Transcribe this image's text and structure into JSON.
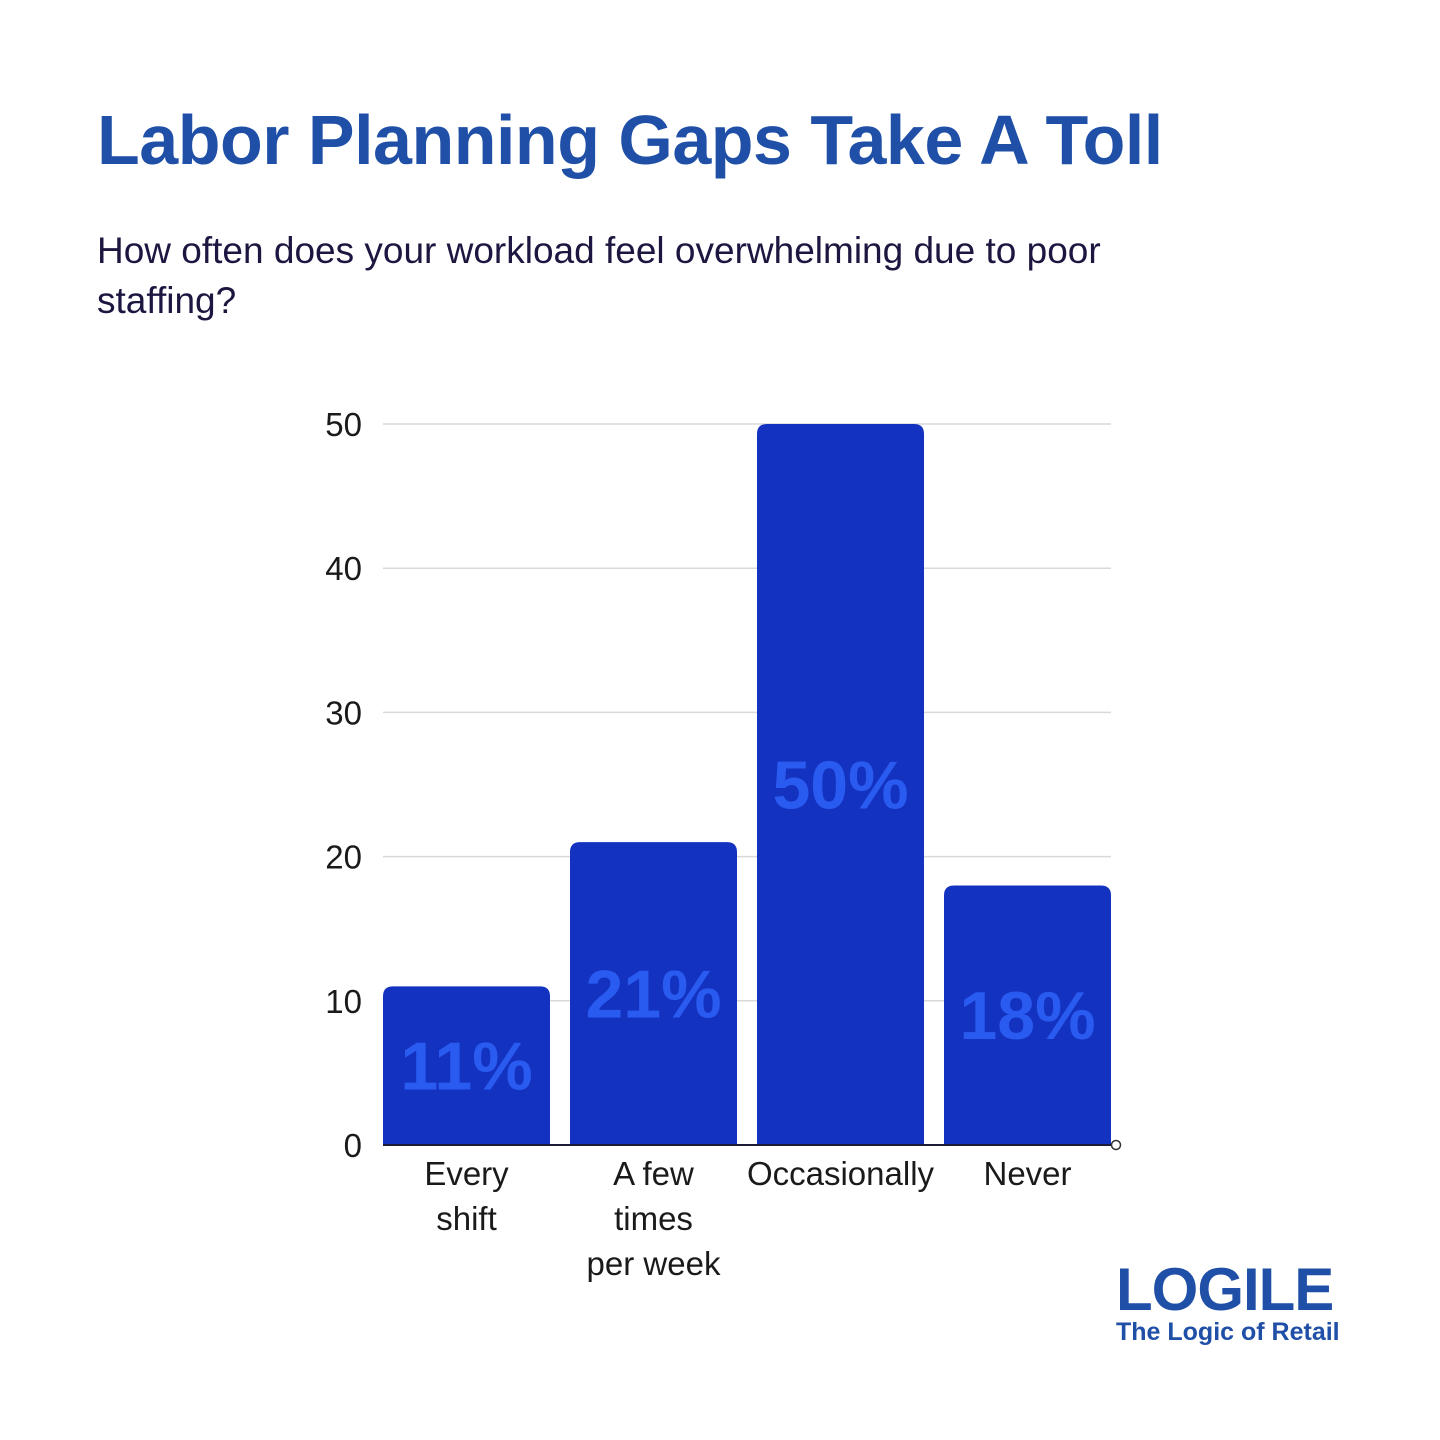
{
  "chart_data": {
    "type": "bar",
    "title": "Labor Planning Gaps Take A Toll",
    "subtitle": "How often does your workload feel overwhelming due to poor staffing?",
    "categories": [
      [
        "Every",
        "shift"
      ],
      [
        "A few",
        "times",
        "per week"
      ],
      [
        "Occasionally"
      ],
      [
        "Never"
      ]
    ],
    "values": [
      11,
      21,
      50,
      18
    ],
    "data_labels": [
      "11%",
      "21%",
      "50%",
      "18%"
    ],
    "ylim": [
      0,
      50
    ],
    "yticks": [
      0,
      10,
      20,
      30,
      40,
      50
    ],
    "grid": true,
    "legend": "none",
    "colors": {
      "bar": "#1432c0",
      "data_label": "#2a5bf0",
      "title": "#1f4fa6",
      "grid": "#d9d9d9"
    }
  },
  "logo": {
    "mark": "LOGILE",
    "tagline": "The Logic of Retail"
  }
}
